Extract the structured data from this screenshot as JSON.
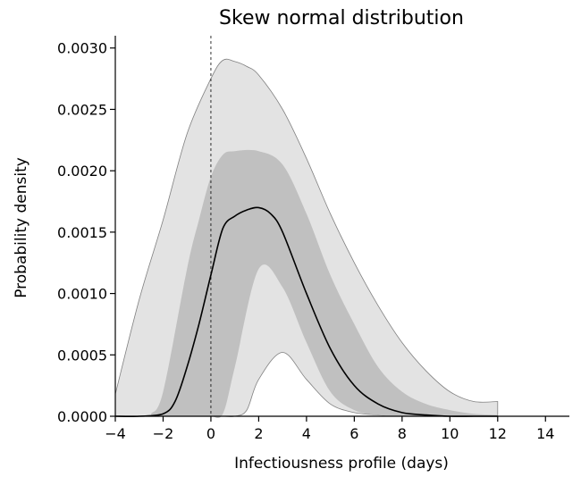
{
  "chart_data": {
    "type": "area",
    "title": "Skew normal distribution",
    "xlabel": "Infectiousness profile (days)",
    "ylabel": "Probability density",
    "xlim": [
      -4,
      15
    ],
    "ylim": [
      0,
      0.0031
    ],
    "xticks": [
      -4,
      -2,
      0,
      2,
      4,
      6,
      8,
      10,
      12,
      14
    ],
    "yticks": [
      0.0,
      0.0005,
      0.001,
      0.0015,
      0.002,
      0.0025,
      0.003
    ],
    "xtick_labels": [
      "−4",
      "−2",
      "0",
      "2",
      "4",
      "6",
      "8",
      "10",
      "12",
      "14"
    ],
    "ytick_labels": [
      "0.0000",
      "0.0005",
      "0.0010",
      "0.0015",
      "0.0020",
      "0.0025",
      "0.0030"
    ],
    "grid": false,
    "reference_line": {
      "x": 0,
      "style": "dashed"
    },
    "colors": {
      "outer_band": "#e3e3e3",
      "inner_band": "#c0c0c0",
      "band_edge": "#808080",
      "median_line": "#000000"
    },
    "series": [
      {
        "role": "outer_band",
        "x": [
          -4,
          -3,
          -2,
          -1,
          0,
          0.5,
          1,
          1.5,
          2,
          3,
          4,
          5,
          6,
          7,
          8,
          9,
          10,
          11,
          12
        ],
        "upper": [
          0.00018,
          0.00095,
          0.0016,
          0.0023,
          0.00275,
          0.0029,
          0.00289,
          0.00285,
          0.00278,
          0.0025,
          0.0021,
          0.00165,
          0.00125,
          0.0009,
          0.0006,
          0.00037,
          0.0002,
          0.00012,
          0.00012
        ],
        "lower": [
          0,
          0,
          0,
          0,
          0,
          0,
          0,
          5e-05,
          0.0003,
          0.00052,
          0.0003,
          0.0001,
          3e-05,
          1e-05,
          0,
          0,
          0,
          0,
          0
        ]
      },
      {
        "role": "inner_band",
        "x": [
          -2.5,
          -2,
          -1,
          -0.5,
          0,
          0.5,
          1,
          2,
          3,
          4,
          5,
          6,
          7,
          8,
          9,
          10,
          11,
          12
        ],
        "upper": [
          2e-05,
          0.0002,
          0.0012,
          0.0016,
          0.00195,
          0.00213,
          0.00216,
          0.00216,
          0.00205,
          0.00165,
          0.00115,
          0.00075,
          0.0004,
          0.0002,
          0.0001,
          5e-05,
          2e-05,
          1e-05
        ],
        "lower": [
          0,
          0,
          0,
          0,
          0,
          2e-05,
          0.0004,
          0.0012,
          0.00105,
          0.0006,
          0.0002,
          5e-05,
          1e-05,
          0,
          0,
          0,
          0,
          0
        ]
      },
      {
        "role": "median",
        "x": [
          -4,
          -3,
          -2,
          -1.5,
          -1,
          -0.5,
          0,
          0.5,
          1,
          1.5,
          2,
          2.5,
          3,
          4,
          5,
          6,
          7,
          8,
          9,
          10,
          11,
          12
        ],
        "values": [
          0,
          0,
          2e-05,
          0.00012,
          0.0004,
          0.00075,
          0.00115,
          0.00153,
          0.00163,
          0.00168,
          0.0017,
          0.00165,
          0.0015,
          0.001,
          0.00055,
          0.00025,
          0.0001,
          3e-05,
          1e-05,
          0,
          0,
          0
        ]
      }
    ]
  }
}
